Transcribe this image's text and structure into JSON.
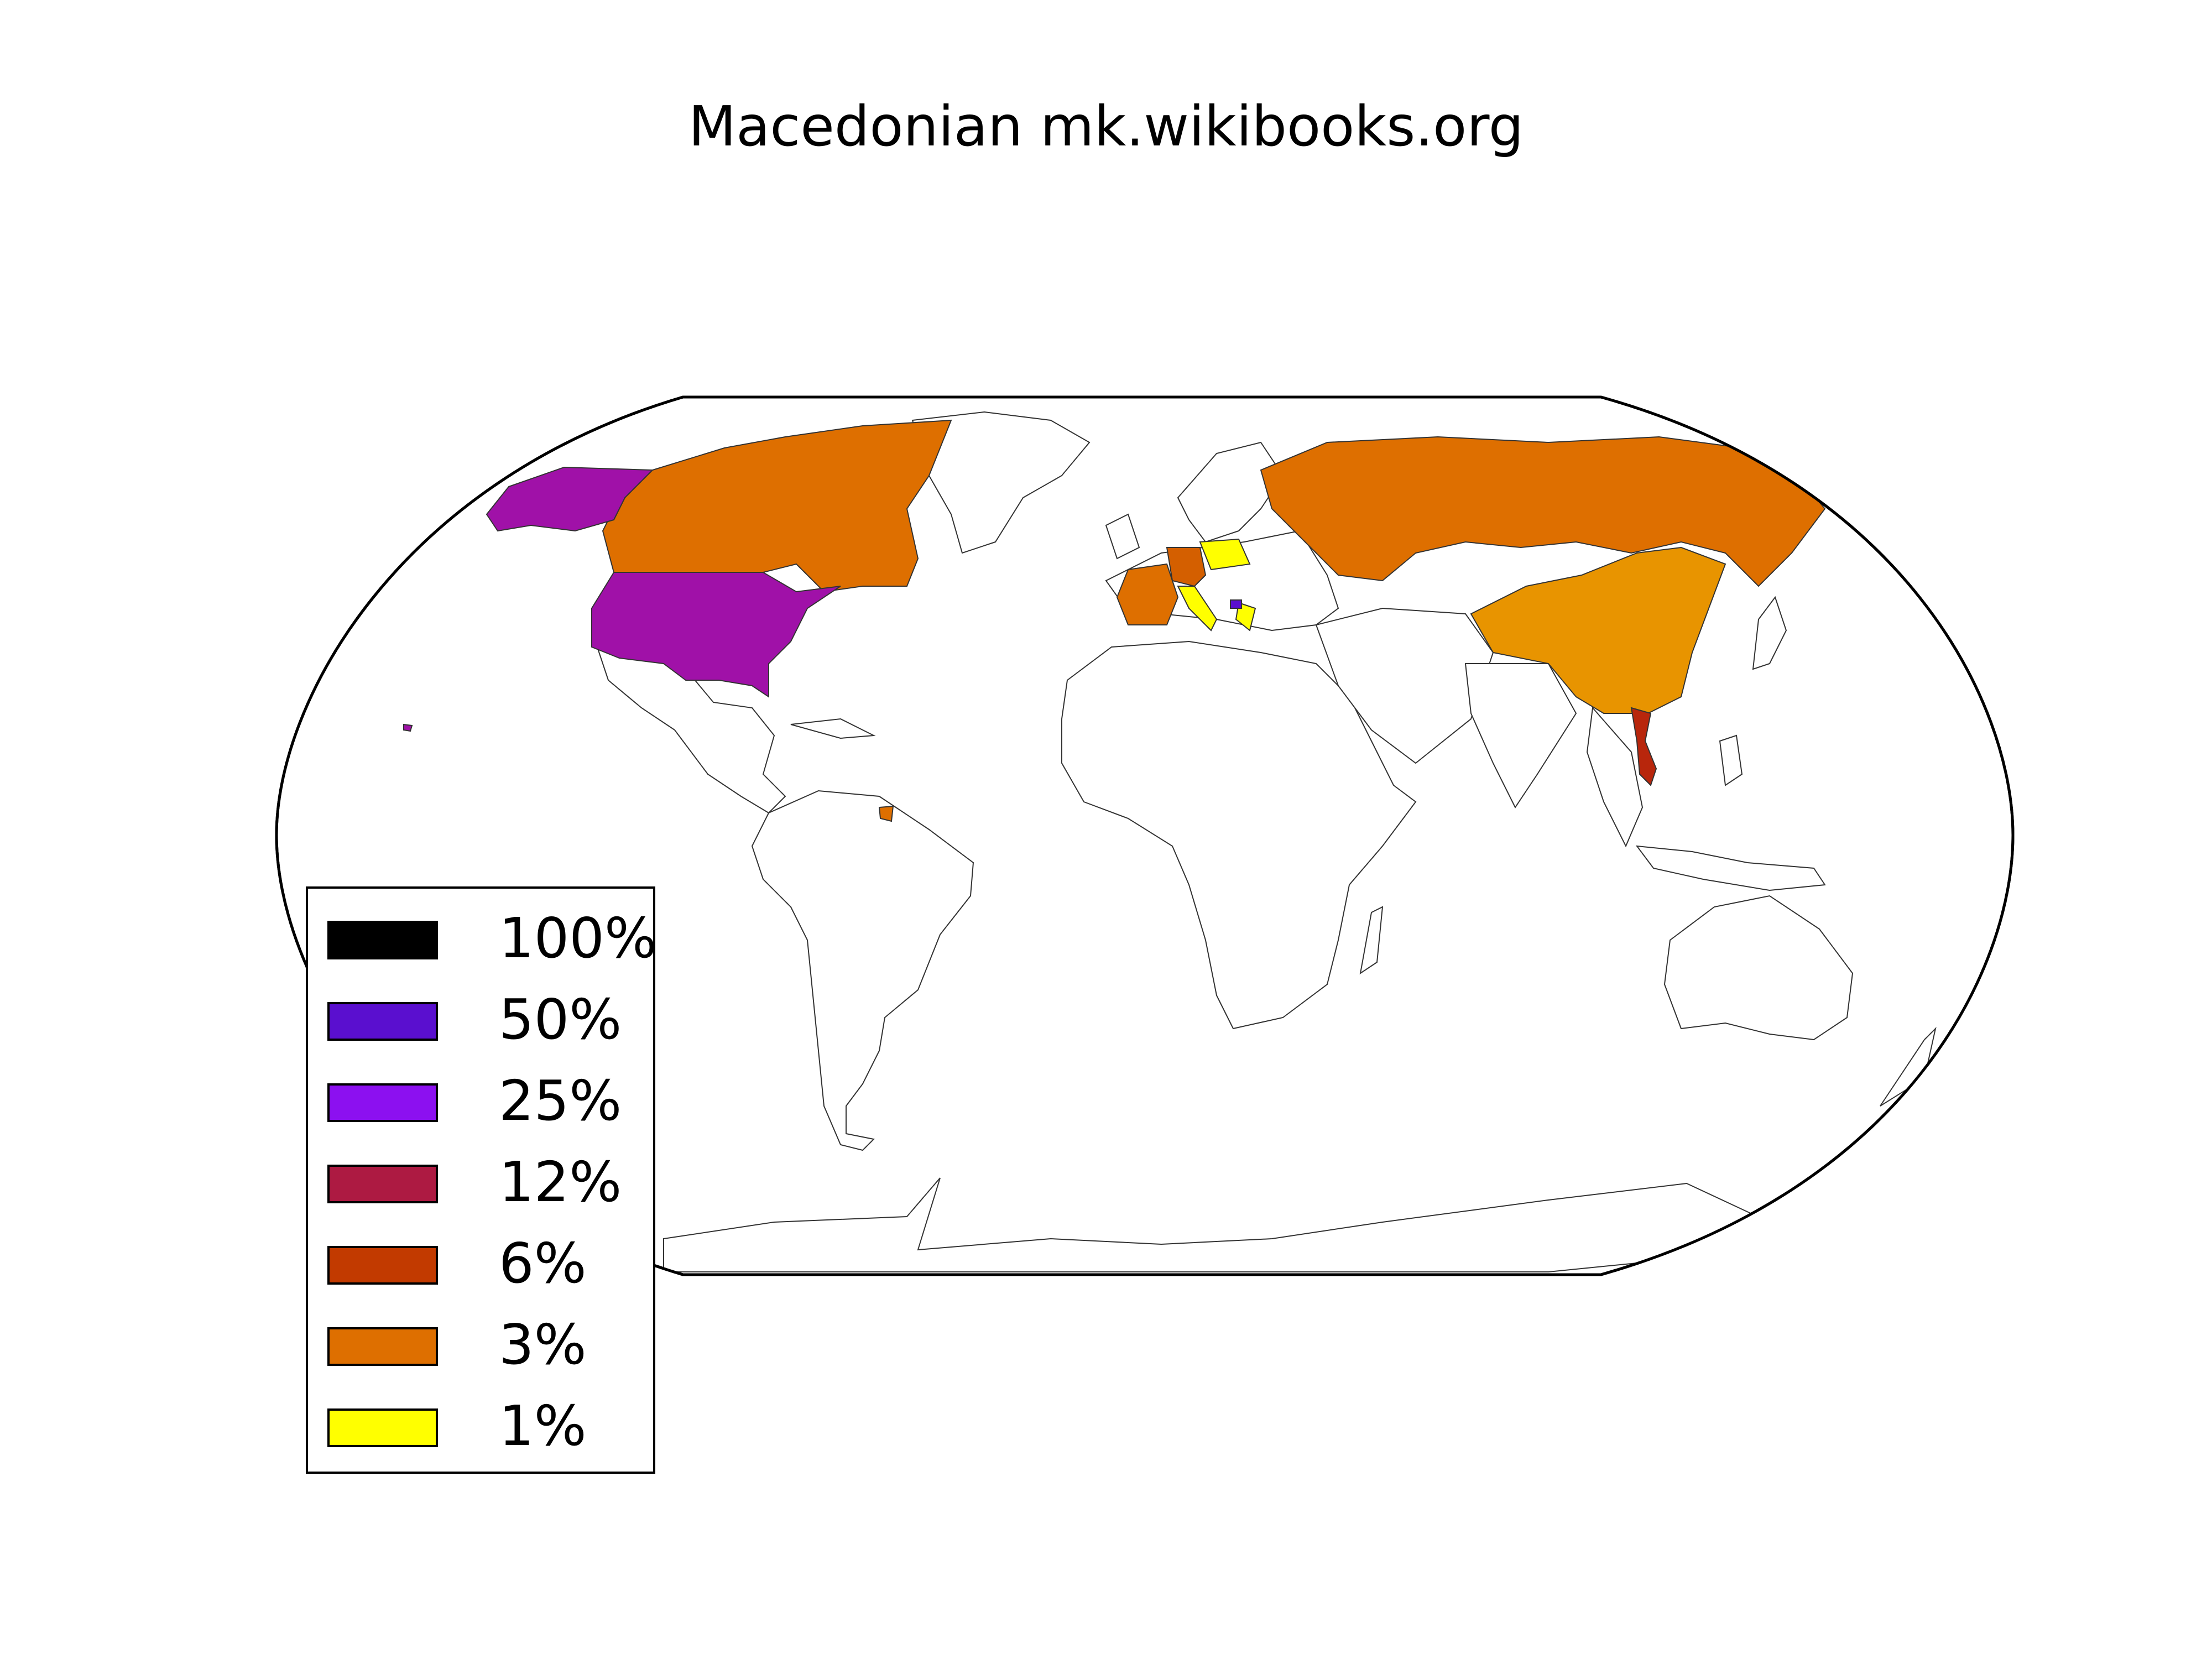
{
  "title": "Macedonian mk.wikibooks.org",
  "legend": {
    "items": [
      {
        "label": "100%",
        "color": "#000000"
      },
      {
        "label": "50%",
        "color": "#5a0fcf"
      },
      {
        "label": "25%",
        "color": "#8c10f0"
      },
      {
        "label": "12%",
        "color": "#ad1a42"
      },
      {
        "label": "6%",
        "color": "#c23a00"
      },
      {
        "label": "3%",
        "color": "#de6f00"
      },
      {
        "label": "1%",
        "color": "#ffff00"
      }
    ]
  },
  "regions": [
    {
      "name": "United States",
      "color": "#a011a8"
    },
    {
      "name": "Canada",
      "color": "#de6f00"
    },
    {
      "name": "Russia",
      "color": "#de6f00"
    },
    {
      "name": "China",
      "color": "#e89400"
    },
    {
      "name": "France",
      "color": "#de6f00"
    },
    {
      "name": "Germany",
      "color": "#d45f00"
    },
    {
      "name": "Poland",
      "color": "#ffff00"
    },
    {
      "name": "Italy",
      "color": "#ffff00"
    },
    {
      "name": "Greece",
      "color": "#ffff00"
    },
    {
      "name": "Macedonia",
      "color": "#5a0fcf"
    },
    {
      "name": "Vietnam",
      "color": "#b8260c"
    },
    {
      "name": "French Guiana",
      "color": "#de6f00"
    }
  ]
}
